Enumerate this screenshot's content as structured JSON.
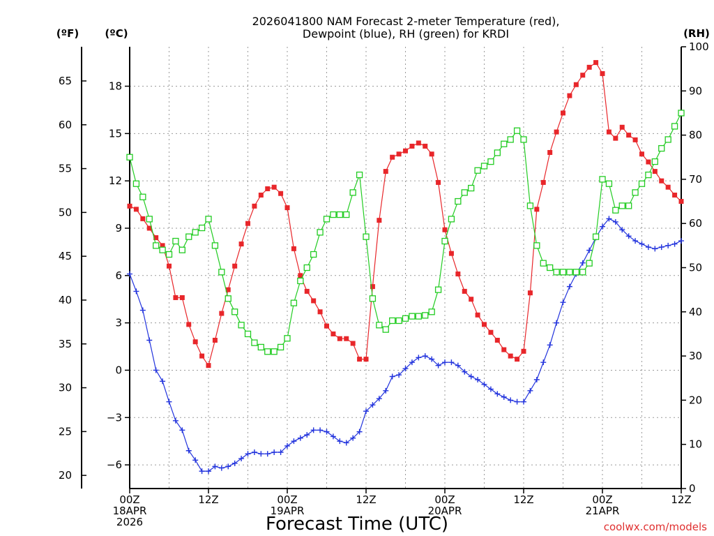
{
  "chart_data": {
    "type": "line",
    "title_line1": "2026041800 NAM Forecast 2-meter Temperature (red),",
    "title_line2": "Dewpoint (blue), RH (green) for KRDI",
    "xlabel": "Forecast Time (UTC)",
    "credit": "coolwx.com/models",
    "left_unit_f": "(ºF)",
    "left_unit_c": "(ºC)",
    "right_unit": "(RH)",
    "xlim": [
      0,
      84
    ],
    "ylim_c": [
      -7.5,
      20.5
    ],
    "ylim_rh": [
      0,
      100
    ],
    "fahrenheit_ticks": [
      {
        "value": 20,
        "label": "20"
      },
      {
        "value": 25,
        "label": "25"
      },
      {
        "value": 30,
        "label": "30"
      },
      {
        "value": 35,
        "label": "35"
      },
      {
        "value": 40,
        "label": "40"
      },
      {
        "value": 45,
        "label": "45"
      },
      {
        "value": 50,
        "label": "50"
      },
      {
        "value": 55,
        "label": "55"
      },
      {
        "value": 60,
        "label": "60"
      },
      {
        "value": 65,
        "label": "65"
      }
    ],
    "celsius_ticks": [
      {
        "value": -6,
        "label": "−6"
      },
      {
        "value": -3,
        "label": "−3"
      },
      {
        "value": 0,
        "label": "0"
      },
      {
        "value": 3,
        "label": "3"
      },
      {
        "value": 6,
        "label": "6"
      },
      {
        "value": 9,
        "label": "9"
      },
      {
        "value": 12,
        "label": "12"
      },
      {
        "value": 15,
        "label": "15"
      },
      {
        "value": 18,
        "label": "18"
      }
    ],
    "rh_ticks": [
      {
        "value": 0,
        "label": "0"
      },
      {
        "value": 10,
        "label": "10"
      },
      {
        "value": 20,
        "label": "20"
      },
      {
        "value": 30,
        "label": "30"
      },
      {
        "value": 40,
        "label": "40"
      },
      {
        "value": 50,
        "label": "50"
      },
      {
        "value": 60,
        "label": "60"
      },
      {
        "value": 70,
        "label": "70"
      },
      {
        "value": 80,
        "label": "80"
      },
      {
        "value": 90,
        "label": "90"
      },
      {
        "value": 100,
        "label": "100"
      }
    ],
    "x_ticks": [
      {
        "hour": 0,
        "lines": [
          "00Z",
          "18APR",
          "2026"
        ]
      },
      {
        "hour": 12,
        "lines": [
          "12Z"
        ]
      },
      {
        "hour": 24,
        "lines": [
          "00Z",
          "19APR"
        ]
      },
      {
        "hour": 36,
        "lines": [
          "12Z"
        ]
      },
      {
        "hour": 48,
        "lines": [
          "00Z",
          "20APR"
        ]
      },
      {
        "hour": 60,
        "lines": [
          "12Z"
        ]
      },
      {
        "hour": 72,
        "lines": [
          "00Z",
          "21APR"
        ]
      },
      {
        "hour": 84,
        "lines": [
          "12Z"
        ]
      }
    ],
    "hours": [
      0,
      1,
      2,
      3,
      4,
      5,
      6,
      7,
      8,
      9,
      10,
      11,
      12,
      13,
      14,
      15,
      16,
      17,
      18,
      19,
      20,
      21,
      22,
      23,
      24,
      25,
      26,
      27,
      28,
      29,
      30,
      31,
      32,
      33,
      34,
      35,
      36,
      37,
      38,
      39,
      40,
      41,
      42,
      43,
      44,
      45,
      46,
      47,
      48,
      49,
      50,
      51,
      52,
      53,
      54,
      55,
      56,
      57,
      58,
      59,
      60,
      61,
      62,
      63,
      64,
      65,
      66,
      67,
      68,
      69,
      70,
      71,
      72,
      73,
      74,
      75,
      76,
      77,
      78,
      79,
      80,
      81,
      82,
      83,
      84
    ],
    "series": [
      {
        "name": "2-meter Temperature",
        "unit": "C",
        "color": "#e8262a",
        "marker": "filled-square",
        "values": [
          10.4,
          10.2,
          9.6,
          9.0,
          8.4,
          7.9,
          6.6,
          4.6,
          4.6,
          2.9,
          1.8,
          0.9,
          0.3,
          1.9,
          3.6,
          5.1,
          6.6,
          8.0,
          9.3,
          10.4,
          11.1,
          11.5,
          11.6,
          11.2,
          10.3,
          7.7,
          6.0,
          5.0,
          4.4,
          3.7,
          2.8,
          2.3,
          2.0,
          2.0,
          1.7,
          0.7,
          0.7,
          5.3,
          9.5,
          12.6,
          13.5,
          13.7,
          13.9,
          14.2,
          14.4,
          14.2,
          13.7,
          11.9,
          8.9,
          7.4,
          6.1,
          5.0,
          4.5,
          3.5,
          2.9,
          2.4,
          1.9,
          1.3,
          0.9,
          0.7,
          1.2,
          4.9,
          10.2,
          11.9,
          13.8,
          15.1,
          16.3,
          17.4,
          18.1,
          18.7,
          19.2,
          19.5,
          18.8,
          15.1,
          14.7,
          15.4,
          14.9,
          14.6,
          13.7,
          13.2,
          12.6,
          12.0,
          11.6,
          11.1,
          10.7
        ]
      },
      {
        "name": "Dewpoint",
        "unit": "C",
        "color": "#2233dd",
        "marker": "plus",
        "values": [
          6.1,
          5.0,
          3.8,
          1.9,
          0.0,
          -0.7,
          -2.0,
          -3.2,
          -3.8,
          -5.1,
          -5.7,
          -6.4,
          -6.4,
          -6.1,
          -6.2,
          -6.1,
          -5.9,
          -5.6,
          -5.3,
          -5.2,
          -5.3,
          -5.3,
          -5.2,
          -5.2,
          -4.8,
          -4.5,
          -4.3,
          -4.1,
          -3.8,
          -3.8,
          -3.9,
          -4.2,
          -4.5,
          -4.6,
          -4.3,
          -3.9,
          -2.6,
          -2.2,
          -1.8,
          -1.3,
          -0.4,
          -0.3,
          0.1,
          0.5,
          0.8,
          0.9,
          0.7,
          0.3,
          0.5,
          0.5,
          0.3,
          -0.1,
          -0.4,
          -0.6,
          -0.9,
          -1.2,
          -1.5,
          -1.7,
          -1.9,
          -2.0,
          -2.0,
          -1.3,
          -0.6,
          0.5,
          1.6,
          3.0,
          4.3,
          5.3,
          6.1,
          6.8,
          7.6,
          8.4,
          9.1,
          9.6,
          9.4,
          8.9,
          8.5,
          8.2,
          8.0,
          7.8,
          7.7,
          7.8,
          7.9,
          8.0,
          8.2
        ]
      },
      {
        "name": "RH",
        "unit": "%",
        "color": "#22cc22",
        "marker": "open-square",
        "values": [
          75,
          69,
          66,
          61,
          55,
          54,
          53,
          56,
          54,
          57,
          58,
          59,
          61,
          55,
          49,
          43,
          40,
          37,
          35,
          33,
          32,
          31,
          31,
          32,
          34,
          42,
          47,
          50,
          53,
          58,
          61,
          62,
          62,
          62,
          67,
          71,
          57,
          43,
          37,
          36,
          38,
          38,
          38.5,
          39,
          39,
          39.2,
          40,
          45,
          56,
          61,
          65,
          67,
          68,
          72,
          73,
          74,
          76,
          78,
          79,
          81,
          79,
          64,
          55,
          51,
          50,
          49,
          49,
          49,
          49,
          49,
          51,
          57,
          70,
          69,
          63,
          64,
          64,
          67,
          69,
          71,
          74,
          77,
          79,
          82,
          85
        ]
      }
    ]
  }
}
